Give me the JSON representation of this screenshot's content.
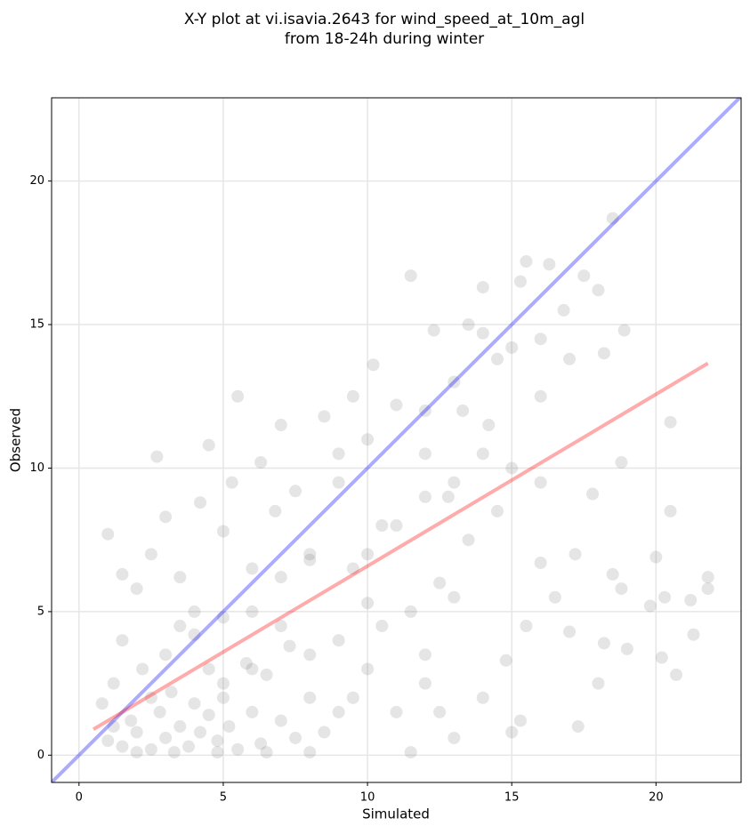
{
  "chart_data": {
    "type": "scatter",
    "title": [
      "X-Y plot at vi.isavia.2643 for wind_speed_at_10m_agl",
      "from 18-24h during winter"
    ],
    "x_label": "Simulated",
    "y_label": "Observed",
    "xlim": [
      -0.95,
      22.95
    ],
    "ylim": [
      -0.95,
      22.9
    ],
    "xticks": [
      0,
      5,
      10,
      15,
      20
    ],
    "yticks": [
      0,
      5,
      10,
      15,
      20
    ],
    "grid": true,
    "series": [
      {
        "color": "#333333",
        "x": [
          0.8,
          1,
          1.2,
          1.5,
          1.8,
          2,
          2.2,
          2.5,
          2.8,
          3,
          3.2,
          3.5,
          3.8,
          4,
          4.2,
          4.5,
          4.8,
          5,
          5.2,
          5.5,
          5.8,
          6,
          6.3,
          6.5,
          7,
          7.3,
          7.5,
          8,
          8.5,
          9,
          1.5,
          2,
          2.5,
          3,
          3.5,
          4,
          4.2,
          4.5,
          5,
          5.3,
          5.5,
          6,
          6.3,
          6.8,
          7,
          7.5,
          8,
          8.5,
          9,
          9.5,
          10,
          10.2,
          10.5,
          11,
          11.5,
          12,
          12.3,
          12.8,
          13,
          13.5,
          14,
          14.2,
          14.5,
          15,
          15.3,
          15.5,
          16,
          16.3,
          16.8,
          17.5,
          18,
          18.5,
          18.2,
          18.9,
          17,
          16,
          15,
          14.5,
          13.5,
          12.5,
          11.5,
          10.5,
          10,
          9.5,
          11,
          12,
          12.5,
          13,
          14,
          15,
          15.3,
          14.8,
          15.5,
          16,
          16.5,
          17,
          17.2,
          17.3,
          17.8,
          18,
          18.2,
          18.5,
          18.8,
          19,
          18.8,
          20,
          20.2,
          20.3,
          20.5,
          20.5,
          20.7,
          21.2,
          21.3,
          21.8,
          21.8,
          19.8,
          3,
          4,
          5,
          6,
          7,
          8,
          9,
          9.5,
          10,
          11,
          12,
          13,
          14,
          16,
          13,
          12,
          8,
          7,
          6,
          5,
          4.5,
          3.5,
          2.5,
          1.2,
          2,
          3.3,
          4.8,
          6.5,
          8,
          1.5,
          1,
          2.7,
          10,
          11.5,
          9,
          12,
          13.3,
          14
        ],
        "y": [
          1.8,
          0.5,
          2.5,
          0.3,
          1.2,
          0.8,
          3,
          0.2,
          1.5,
          0.6,
          2.2,
          1,
          0.3,
          1.8,
          0.8,
          1.4,
          0.5,
          2.5,
          1,
          0.2,
          3.2,
          1.5,
          0.4,
          2.8,
          1.2,
          3.8,
          0.6,
          2,
          0.8,
          1.5,
          4,
          5.8,
          7,
          8.3,
          6.2,
          5,
          8.8,
          10.8,
          7.8,
          9.5,
          12.5,
          6.5,
          10.2,
          8.5,
          11.5,
          9.2,
          6.8,
          11.8,
          9.5,
          12.5,
          11,
          13.6,
          8,
          12.2,
          16.7,
          10.5,
          14.8,
          9,
          13,
          15,
          16.3,
          11.5,
          13.8,
          14.2,
          16.5,
          17.2,
          14.5,
          17.1,
          15.5,
          16.7,
          16.2,
          18.7,
          14,
          14.8,
          13.8,
          12.5,
          10,
          8.5,
          7.5,
          6,
          5,
          4.5,
          3,
          2,
          1.5,
          2.5,
          1.5,
          0.6,
          2,
          0.8,
          1.2,
          3.3,
          4.5,
          6.7,
          5.5,
          4.3,
          7,
          1,
          9.1,
          2.5,
          3.9,
          6.3,
          5.8,
          3.7,
          10.2,
          6.9,
          3.4,
          5.5,
          11.6,
          8.5,
          2.8,
          5.4,
          4.2,
          6.2,
          5.8,
          5.2,
          3.5,
          4.2,
          4.8,
          5,
          4.5,
          3.5,
          4,
          6.5,
          7,
          8,
          9,
          9.5,
          10.5,
          9.5,
          5.5,
          3.5,
          7,
          6.2,
          3,
          2,
          3,
          4.5,
          2,
          1,
          0.1,
          0.1,
          0.1,
          0.1,
          0.1,
          6.3,
          7.7,
          10.4,
          5.3,
          0.1,
          10.5,
          12,
          12,
          14.7
        ]
      }
    ],
    "lines": [
      {
        "color": "#0000ff",
        "x": [
          -1,
          23
        ],
        "y": [
          -1,
          23
        ]
      },
      {
        "color": "#ff0000",
        "x": [
          0.5,
          21.8
        ],
        "y": [
          0.9,
          13.65
        ]
      }
    ]
  }
}
